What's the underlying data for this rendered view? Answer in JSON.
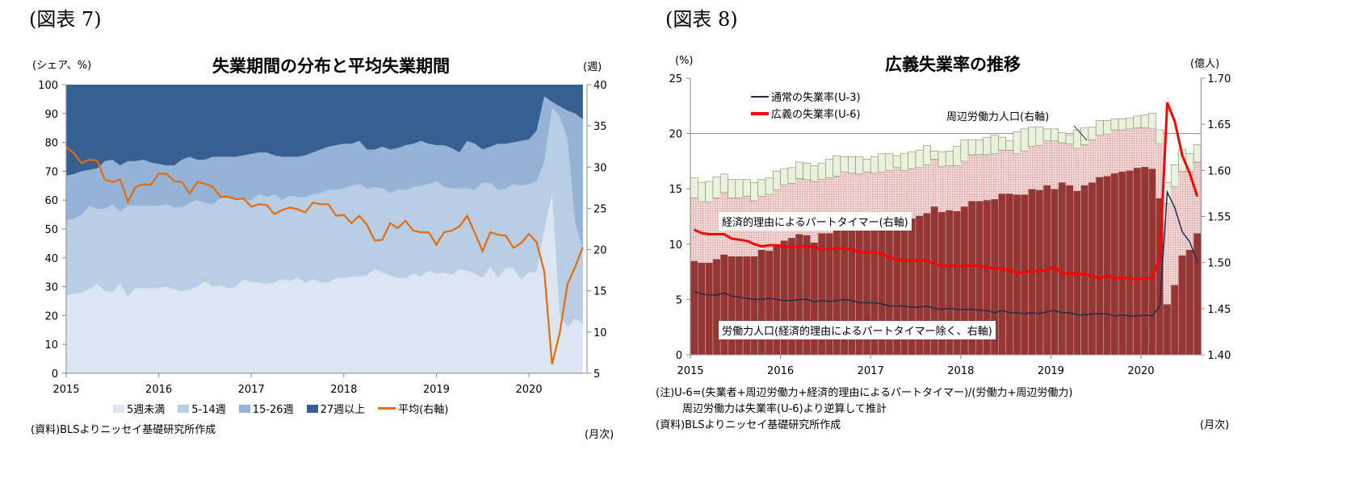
{
  "figure7": {
    "fig_label": "(図表 7)",
    "source": "(資料)BLSよりニッセイ基礎研究所作成",
    "freq": "(月次)"
  },
  "figure8": {
    "fig_label": "(図表 8)",
    "note1": "(注)U-6=(失業者+周辺労働力+経済的理由によるパートタイマー)/(労働力+周辺労働力)",
    "note2": "周辺労働力は失業率(U-6)より逆算して推計",
    "source": "(資料)BLSよりニッセイ基礎研究所作成",
    "freq": "(月次)"
  },
  "chart_data": [
    {
      "type": "area",
      "stacked": true,
      "title": "失業期間の分布と平均失業期間",
      "ylabel": "(シェア、%)",
      "y2label": "(週)",
      "x_start": "2015-01",
      "x_end": "2020-08",
      "frequency": "monthly",
      "xticks": [
        "2015",
        "2016",
        "2017",
        "2018",
        "2019",
        "2020"
      ],
      "ylim": [
        0,
        100
      ],
      "yticks": [
        "0",
        "10",
        "20",
        "30",
        "40",
        "50",
        "60",
        "70",
        "80",
        "90",
        "100"
      ],
      "y2lim": [
        5,
        40
      ],
      "y2ticks": [
        "5",
        "10",
        "15",
        "20",
        "25",
        "30",
        "35",
        "40"
      ],
      "legend_position": "bottom",
      "series": [
        {
          "name": "5週未満",
          "color": "#dce6f2",
          "values": [
            27,
            27.5,
            28,
            29,
            31,
            28.5,
            28,
            31,
            26.5,
            29.5,
            29.5,
            29.5,
            29.5,
            30,
            29,
            28.5,
            29,
            30,
            32,
            30,
            30.5,
            29.5,
            30,
            32.5,
            31.5,
            31.5,
            31,
            31.5,
            32.5,
            32,
            33,
            31.5,
            32.5,
            31.5,
            31.5,
            33,
            33,
            33.5,
            33.5,
            34,
            36,
            35,
            34,
            33,
            33,
            34.5,
            33.5,
            35.5,
            34.5,
            35,
            34,
            36,
            35.5,
            34.5,
            33,
            37,
            33,
            36.5,
            36.5,
            32.5,
            35,
            35,
            50,
            62,
            20,
            16,
            19,
            17
          ]
        },
        {
          "name": "5-14週",
          "color": "#b9cde5",
          "values": [
            26,
            26,
            27,
            29,
            26,
            28.5,
            30.5,
            25,
            31.5,
            28.5,
            28.5,
            28.5,
            28.5,
            28.5,
            28.5,
            29,
            30,
            30,
            27,
            28.5,
            30,
            31.5,
            30,
            27.5,
            28.5,
            30.5,
            30,
            30.5,
            27.5,
            29.5,
            28,
            29.5,
            29.5,
            31,
            32,
            30.5,
            31,
            31.5,
            32,
            30,
            28.5,
            29,
            28.5,
            30.5,
            30.5,
            30,
            31.5,
            30,
            32,
            29.5,
            30,
            28,
            28.5,
            29,
            33,
            29,
            30.5,
            27.5,
            29,
            32.5,
            30.5,
            31.5,
            23,
            30,
            69,
            65,
            33,
            26
          ]
        },
        {
          "name": "15-26週",
          "color": "#95b3d7",
          "values": [
            15.5,
            15.5,
            15,
            12.5,
            14,
            16.5,
            15.5,
            16,
            15.5,
            15.5,
            16,
            15,
            14.5,
            13.5,
            14.5,
            16.5,
            16,
            14,
            15,
            16.5,
            14.5,
            14,
            15,
            15.5,
            16,
            14.5,
            15.5,
            13.5,
            15,
            13.5,
            14,
            14.5,
            14.5,
            15,
            15,
            15.5,
            15.5,
            14.5,
            15,
            13.5,
            13,
            14.5,
            15,
            14.5,
            15.5,
            15,
            15.5,
            14,
            12.5,
            14.5,
            14,
            12.5,
            16.5,
            16,
            11.5,
            12.5,
            16,
            15.5,
            14.5,
            15.5,
            15.5,
            17.5,
            23,
            2,
            3.5,
            10,
            38,
            45
          ]
        },
        {
          "name": "27週以上",
          "color": "#376092",
          "values": [
            31.5,
            31,
            30,
            29.5,
            29,
            26.5,
            26,
            28,
            26.5,
            26.5,
            26,
            27,
            27.5,
            28,
            28,
            26,
            25,
            26,
            26,
            25,
            25,
            25,
            25,
            24.5,
            24,
            23.5,
            23.5,
            24.5,
            25,
            25,
            25,
            24.5,
            23.5,
            22.5,
            21.5,
            21,
            20.5,
            20.5,
            19.5,
            22.5,
            22.5,
            21.5,
            22.5,
            22,
            21,
            20.5,
            19.5,
            20.5,
            21,
            21,
            22,
            23.5,
            19.5,
            20.5,
            22.5,
            21.5,
            20.5,
            20.5,
            20,
            19.5,
            19,
            16,
            4,
            6,
            7.5,
            9,
            10,
            12
          ]
        }
      ],
      "line_series": {
        "name": "平均(右軸)",
        "axis": "right",
        "color": "#e46c0a",
        "values": [
          32.4,
          31.7,
          30.5,
          30.9,
          30.8,
          28.5,
          28.2,
          28.5,
          25.8,
          27.6,
          27.9,
          27.9,
          29.2,
          29.2,
          28.3,
          28.2,
          26.8,
          28.2,
          28.0,
          27.6,
          26.4,
          26.4,
          26.1,
          26.2,
          25.2,
          25.5,
          25.4,
          24.3,
          24.8,
          25.1,
          24.9,
          24.5,
          25.7,
          25.5,
          25.5,
          24.1,
          24.2,
          23.2,
          24.1,
          23.0,
          21.1,
          21.2,
          23.2,
          22.6,
          23.5,
          22.3,
          22.1,
          22.1,
          20.6,
          22.1,
          22.3,
          22.8,
          24.1,
          22.0,
          19.8,
          22.1,
          21.8,
          21.7,
          20.2,
          20.8,
          21.9,
          20.9,
          17.3,
          6.1,
          9.9,
          15.8,
          17.9,
          20.3
        ]
      }
    },
    {
      "type": "bar",
      "stacked": true,
      "bar_values_are_cumulative_tops": true,
      "title": "広義失業率の推移",
      "ylabel": "(%)",
      "y2label": "(億人)",
      "x_start": "2015-01",
      "x_end": "2020-08",
      "frequency": "monthly",
      "xticks": [
        "2015",
        "2016",
        "2017",
        "2018",
        "2019",
        "2020"
      ],
      "ylim": [
        0,
        25
      ],
      "yticks": [
        "0",
        "5",
        "10",
        "15",
        "20",
        "25"
      ],
      "y2lim": [
        1.4,
        1.7
      ],
      "y2ticks": [
        "1.40",
        "1.45",
        "1.50",
        "1.55",
        "1.60",
        "1.65",
        "1.70"
      ],
      "gridlines": [
        20
      ],
      "bar_series": [
        {
          "name": "労働力人口(経済的理由によるパートタイマー除く、右軸)",
          "axis": "right",
          "color": "#943634",
          "values": [
            1.502,
            1.5,
            1.5,
            1.504,
            1.509,
            1.507,
            1.507,
            1.507,
            1.507,
            1.514,
            1.513,
            1.519,
            1.524,
            1.527,
            1.531,
            1.53,
            1.522,
            1.532,
            1.532,
            1.536,
            1.538,
            1.538,
            1.538,
            1.537,
            1.539,
            1.542,
            1.543,
            1.544,
            1.545,
            1.548,
            1.551,
            1.554,
            1.561,
            1.555,
            1.557,
            1.556,
            1.561,
            1.567,
            1.567,
            1.568,
            1.569,
            1.575,
            1.575,
            1.574,
            1.574,
            1.58,
            1.579,
            1.584,
            1.58,
            1.587,
            1.584,
            1.578,
            1.584,
            1.587,
            1.593,
            1.594,
            1.597,
            1.599,
            1.6,
            1.603,
            1.604,
            1.602,
            1.57,
            1.455,
            1.476,
            1.508,
            1.514,
            1.532
          ]
        },
        {
          "name": "経済的理由によるパートタイマー(右軸)",
          "axis": "right",
          "color": "#e6b9b8",
          "values": [
            1.57,
            1.566,
            1.566,
            1.57,
            1.576,
            1.57,
            1.57,
            1.572,
            1.567,
            1.572,
            1.574,
            1.579,
            1.584,
            1.586,
            1.591,
            1.59,
            1.588,
            1.59,
            1.592,
            1.594,
            1.598,
            1.597,
            1.596,
            1.598,
            1.597,
            1.598,
            1.6,
            1.603,
            1.6,
            1.602,
            1.603,
            1.606,
            1.612,
            1.604,
            1.605,
            1.605,
            1.61,
            1.617,
            1.617,
            1.617,
            1.618,
            1.622,
            1.622,
            1.618,
            1.621,
            1.626,
            1.627,
            1.632,
            1.632,
            1.63,
            1.629,
            1.624,
            1.628,
            1.633,
            1.638,
            1.639,
            1.644,
            1.644,
            1.645,
            1.646,
            1.646,
            1.645,
            1.629,
            1.564,
            1.582,
            1.599,
            1.599,
            1.609
          ]
        },
        {
          "name": "周辺労働力人口(右軸)",
          "axis": "right",
          "color": "#ebf1de",
          "values": [
            1.592,
            1.587,
            1.588,
            1.593,
            1.596,
            1.59,
            1.59,
            1.59,
            1.587,
            1.59,
            1.592,
            1.599,
            1.602,
            1.603,
            1.609,
            1.608,
            1.605,
            1.608,
            1.612,
            1.616,
            1.615,
            1.615,
            1.615,
            1.612,
            1.615,
            1.618,
            1.618,
            1.616,
            1.618,
            1.62,
            1.622,
            1.627,
            1.621,
            1.62,
            1.621,
            1.626,
            1.633,
            1.633,
            1.633,
            1.636,
            1.638,
            1.636,
            1.632,
            1.642,
            1.645,
            1.647,
            1.647,
            1.645,
            1.645,
            1.641,
            1.638,
            1.644,
            1.646,
            1.647,
            1.654,
            1.654,
            1.656,
            1.656,
            1.657,
            1.659,
            1.66,
            1.662,
            1.644,
            1.587,
            1.606,
            1.623,
            1.618,
            1.628
          ]
        }
      ],
      "line_series": [
        {
          "name": "通常の失業率(U-3)",
          "axis": "left",
          "color": "#1f2d4a",
          "values": [
            5.7,
            5.5,
            5.4,
            5.4,
            5.6,
            5.3,
            5.2,
            5.1,
            5.0,
            5.0,
            5.1,
            5.0,
            4.9,
            4.9,
            5.0,
            5.0,
            4.8,
            4.9,
            4.8,
            4.9,
            5.0,
            4.9,
            4.7,
            4.7,
            4.7,
            4.6,
            4.4,
            4.4,
            4.4,
            4.3,
            4.3,
            4.4,
            4.2,
            4.1,
            4.2,
            4.1,
            4.1,
            4.1,
            4.0,
            4.0,
            3.8,
            4.0,
            3.8,
            3.8,
            3.7,
            3.8,
            3.7,
            3.9,
            4.0,
            3.8,
            3.8,
            3.6,
            3.6,
            3.7,
            3.7,
            3.7,
            3.5,
            3.6,
            3.5,
            3.5,
            3.6,
            3.5,
            4.4,
            14.7,
            13.3,
            11.1,
            10.2,
            8.4
          ]
        },
        {
          "name": "広義の失業率(U-6)",
          "axis": "left",
          "color": "#ff0000",
          "values": [
            11.3,
            11.0,
            10.9,
            10.9,
            10.9,
            10.5,
            10.4,
            10.3,
            10.0,
            9.8,
            9.9,
            9.9,
            9.8,
            9.7,
            9.8,
            9.8,
            9.8,
            9.5,
            9.6,
            9.6,
            9.6,
            9.5,
            9.3,
            9.2,
            9.3,
            9.1,
            8.8,
            8.6,
            8.5,
            8.5,
            8.5,
            8.5,
            8.2,
            8.0,
            8.1,
            8.0,
            8.0,
            8.1,
            8.0,
            7.9,
            7.8,
            7.8,
            7.6,
            7.4,
            7.5,
            7.5,
            7.6,
            7.6,
            8.0,
            7.3,
            7.4,
            7.3,
            7.3,
            7.1,
            6.9,
            7.2,
            6.9,
            7.0,
            6.9,
            6.8,
            6.9,
            7.0,
            8.7,
            22.8,
            21.1,
            18.0,
            16.4,
            14.3
          ]
        }
      ]
    }
  ]
}
